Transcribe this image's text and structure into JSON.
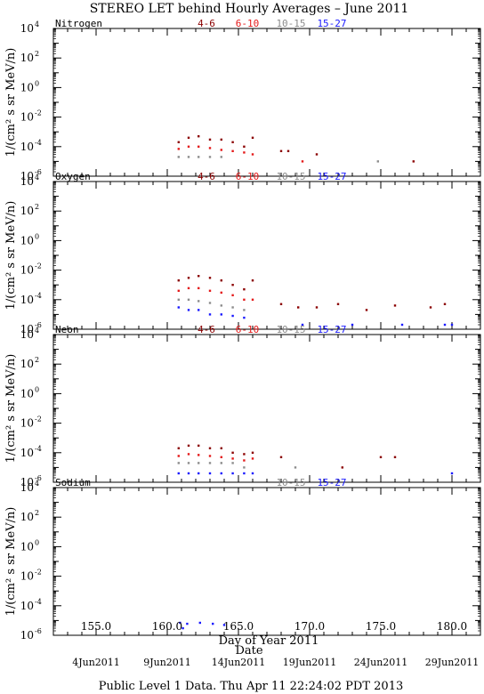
{
  "title": "STEREO LET behind Hourly Averages – June 2011",
  "footer": "Public Level 1 Data. Thu Apr 11 22:24:02 PDT 2013",
  "x_axis_label": "Day of Year 2011",
  "date_label": "Date",
  "y_axis_label": "1/(cm² s sr MeV/n)",
  "x_ticks": [
    "155.0",
    "160.0",
    "165.0",
    "170.0",
    "175.0",
    "180.0"
  ],
  "date_ticks": [
    "4Jun2011",
    "9Jun2011",
    "14Jun2011",
    "19Jun2011",
    "24Jun2011",
    "29Jun2011"
  ],
  "colors": {
    "range_4_6": "#8b0000",
    "range_6_10": "#e41a1a",
    "range_10_15": "#8c8c8c",
    "range_15_27": "#1a1aff"
  },
  "chart_data": [
    {
      "type": "scatter",
      "element": "Nitrogen",
      "xlim": [
        152.0,
        182.0
      ],
      "ylim": [
        1e-06,
        10000.0
      ],
      "yscale": "log",
      "yticks": [
        "10^4",
        "10^2",
        "10^0",
        "10^-2",
        "10^-4",
        "10^-6"
      ],
      "legend": [
        "4-6",
        "6-10",
        "10-15",
        "15-27"
      ],
      "series": [
        {
          "name": "4-6",
          "x": [
            160.8,
            161.5,
            162.2,
            163.0,
            163.8,
            164.6,
            165.4,
            166.0,
            168.0,
            168.5,
            170.5,
            177.3
          ],
          "y": [
            0.0002,
            0.0004,
            0.0005,
            0.0003,
            0.0003,
            0.0002,
            0.0001,
            0.0004,
            5e-05,
            5e-05,
            3e-05,
            1e-05
          ]
        },
        {
          "name": "6-10",
          "x": [
            160.8,
            161.5,
            162.2,
            163.0,
            163.8,
            164.6,
            165.4,
            166.0,
            169.5
          ],
          "y": [
            7e-05,
            0.0001,
            0.0001,
            8e-05,
            6e-05,
            5e-05,
            4e-05,
            3e-05,
            1e-05
          ]
        },
        {
          "name": "10-15",
          "x": [
            160.8,
            161.5,
            162.2,
            163.0,
            163.8,
            174.8
          ],
          "y": [
            2e-05,
            2e-05,
            2e-05,
            2e-05,
            2e-05,
            1e-05
          ]
        },
        {
          "name": "15-27",
          "x": [],
          "y": []
        }
      ]
    },
    {
      "type": "scatter",
      "element": "Oxygen",
      "xlim": [
        152.0,
        182.0
      ],
      "ylim": [
        1e-06,
        10000.0
      ],
      "yscale": "log",
      "yticks": [
        "10^4",
        "10^2",
        "10^0",
        "10^-2",
        "10^-4",
        "10^-6"
      ],
      "legend": [
        "4-6",
        "6-10",
        "10-15",
        "15-27"
      ],
      "series": [
        {
          "name": "4-6",
          "x": [
            160.8,
            161.5,
            162.2,
            163.0,
            163.8,
            164.6,
            165.4,
            166.0,
            168.0,
            169.2,
            170.5,
            172.0,
            174.0,
            176.0,
            178.5,
            179.5
          ],
          "y": [
            0.002,
            0.003,
            0.004,
            0.003,
            0.002,
            0.001,
            0.0005,
            0.002,
            5e-05,
            3e-05,
            3e-05,
            5e-05,
            2e-05,
            4e-05,
            3e-05,
            5e-05
          ]
        },
        {
          "name": "6-10",
          "x": [
            160.8,
            161.5,
            162.2,
            163.0,
            163.8,
            164.6,
            165.4,
            166.0
          ],
          "y": [
            0.0004,
            0.0006,
            0.0006,
            0.0004,
            0.0003,
            0.0002,
            0.0001,
            0.0001
          ]
        },
        {
          "name": "10-15",
          "x": [
            160.8,
            161.5,
            162.2,
            163.0,
            163.8,
            164.6,
            165.4
          ],
          "y": [
            0.0001,
            0.0001,
            8e-05,
            6e-05,
            4e-05,
            3e-05,
            2e-05
          ]
        },
        {
          "name": "15-27",
          "x": [
            160.8,
            161.5,
            162.2,
            163.0,
            163.8,
            164.6,
            165.4,
            169.5,
            173.0,
            176.5,
            179.5,
            180.0
          ],
          "y": [
            3e-05,
            2e-05,
            2e-05,
            1e-05,
            1e-05,
            8e-06,
            6e-06,
            2e-06,
            2e-06,
            2e-06,
            2e-06,
            2e-06
          ]
        }
      ]
    },
    {
      "type": "scatter",
      "element": "Neon",
      "xlim": [
        152.0,
        182.0
      ],
      "ylim": [
        1e-06,
        10000.0
      ],
      "yscale": "log",
      "yticks": [
        "10^4",
        "10^2",
        "10^0",
        "10^-2",
        "10^-4",
        "10^-6"
      ],
      "legend": [
        "4-6",
        "6-10",
        "10-15",
        "15-27"
      ],
      "series": [
        {
          "name": "4-6",
          "x": [
            160.8,
            161.5,
            162.2,
            163.0,
            163.8,
            164.6,
            165.4,
            166.0,
            168.0,
            172.3,
            175.0,
            176.0
          ],
          "y": [
            0.0002,
            0.0003,
            0.0003,
            0.0002,
            0.0002,
            0.0001,
            8e-05,
            0.0001,
            5e-05,
            1e-05,
            5e-05,
            5e-05
          ]
        },
        {
          "name": "6-10",
          "x": [
            160.8,
            161.5,
            162.2,
            163.0,
            163.8,
            164.6,
            165.4,
            166.0
          ],
          "y": [
            6e-05,
            8e-05,
            7e-05,
            6e-05,
            5e-05,
            4e-05,
            3e-05,
            4e-05
          ]
        },
        {
          "name": "10-15",
          "x": [
            160.8,
            161.5,
            162.2,
            163.0,
            163.8,
            164.6,
            165.4,
            169.0
          ],
          "y": [
            2e-05,
            2e-05,
            2e-05,
            2e-05,
            2e-05,
            2e-05,
            1e-05,
            1e-05
          ]
        },
        {
          "name": "15-27",
          "x": [
            160.8,
            161.5,
            162.2,
            163.0,
            163.8,
            164.6,
            165.4,
            166.0,
            180.0
          ],
          "y": [
            4e-06,
            4e-06,
            4e-06,
            4e-06,
            4e-06,
            4e-06,
            4e-06,
            4e-06,
            4e-06
          ]
        }
      ]
    },
    {
      "type": "scatter",
      "element": "Sodium",
      "xlim": [
        152.0,
        182.0
      ],
      "ylim": [
        1e-06,
        10000.0
      ],
      "yscale": "log",
      "yticks": [
        "10^4",
        "10^2",
        "10^0",
        "10^-2",
        "10^-4",
        "10^-6"
      ],
      "legend": [
        "10-15",
        "15-27"
      ],
      "series": [
        {
          "name": "10-15",
          "x": [],
          "y": []
        },
        {
          "name": "15-27",
          "x": [
            160.9,
            161.1,
            161.4,
            162.3,
            163.2,
            164.0
          ],
          "y": [
            7e-06,
            3e-06,
            6e-06,
            7e-06,
            6e-06,
            5e-06
          ]
        }
      ]
    }
  ]
}
